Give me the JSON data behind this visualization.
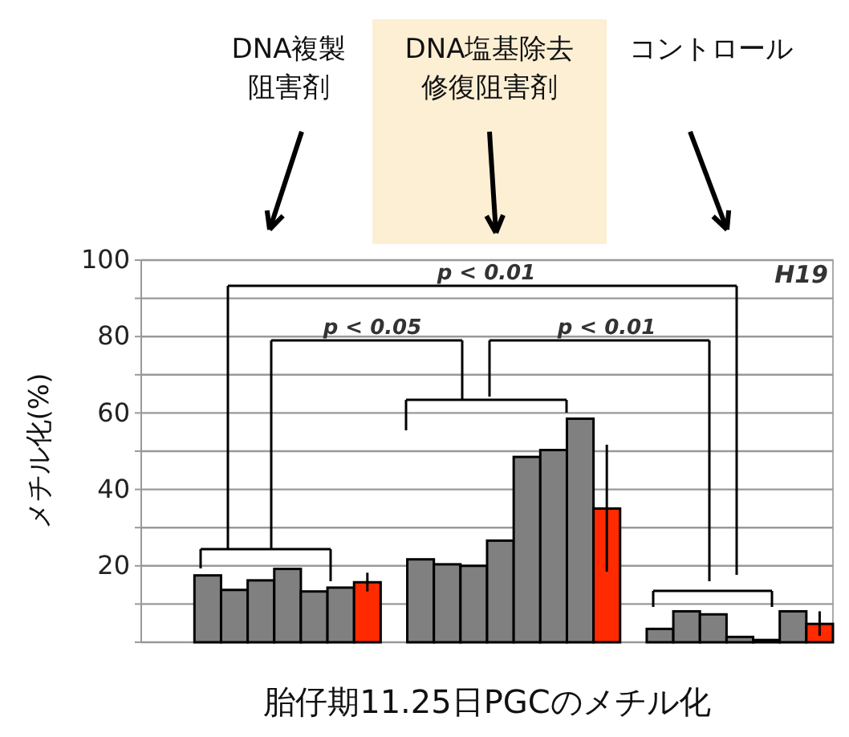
{
  "chart_data": {
    "type": "bar",
    "xlabel": "胎仔期11.25日PGCのメチル化",
    "ylabel": "メチル化(%)",
    "categories": [
      null,
      null,
      null,
      null,
      null,
      null,
      null,
      null,
      null,
      null,
      null,
      null,
      null,
      null,
      null,
      null,
      null,
      null,
      null,
      null,
      null,
      null,
      null,
      null,
      null,
      null
    ],
    "values": [
      null,
      null,
      17.5,
      13.7,
      16.2,
      19.2,
      13.3,
      14.3,
      15.7,
      null,
      21.7,
      20.4,
      20.0,
      26.6,
      48.5,
      50.3,
      58.5,
      35.0,
      null,
      3.5,
      8.1,
      7.3,
      1.4,
      0.6,
      8.1,
      4.8
    ],
    "colors": [
      null,
      null,
      "#808080",
      "#808080",
      "#808080",
      "#808080",
      "#808080",
      "#808080",
      "#ff2a00",
      null,
      "#808080",
      "#808080",
      "#808080",
      "#808080",
      "#808080",
      "#808080",
      "#808080",
      "#ff2a00",
      null,
      "#808080",
      "#808080",
      "#808080",
      "#808080",
      "#808080",
      "#808080",
      "#ff2a00"
    ],
    "errors": [
      null,
      null,
      null,
      null,
      null,
      null,
      null,
      null,
      [
        13.3,
        18.2
      ],
      null,
      null,
      null,
      null,
      null,
      null,
      null,
      null,
      [
        18.5,
        51.7
      ],
      null,
      null,
      null,
      null,
      null,
      null,
      null,
      [
        1.7,
        8.1
      ]
    ],
    "ylim": [
      0,
      100
    ],
    "yticks": [
      {
        "value": 0,
        "label": null
      },
      {
        "value": 10,
        "label": null
      },
      20,
      {
        "value": 30,
        "label": null
      },
      40,
      {
        "value": 50,
        "label": null
      },
      60,
      {
        "value": 70,
        "label": null
      },
      80,
      {
        "value": 90,
        "label": null
      },
      100
    ],
    "grid": "y",
    "annotations": [
      "DNA複製阻害剤",
      "DNA塩基除去修復阻害剤",
      "コントロール",
      "p < 0.01",
      "p < 0.05",
      "p < 0.01",
      "H19"
    ]
  }
}
